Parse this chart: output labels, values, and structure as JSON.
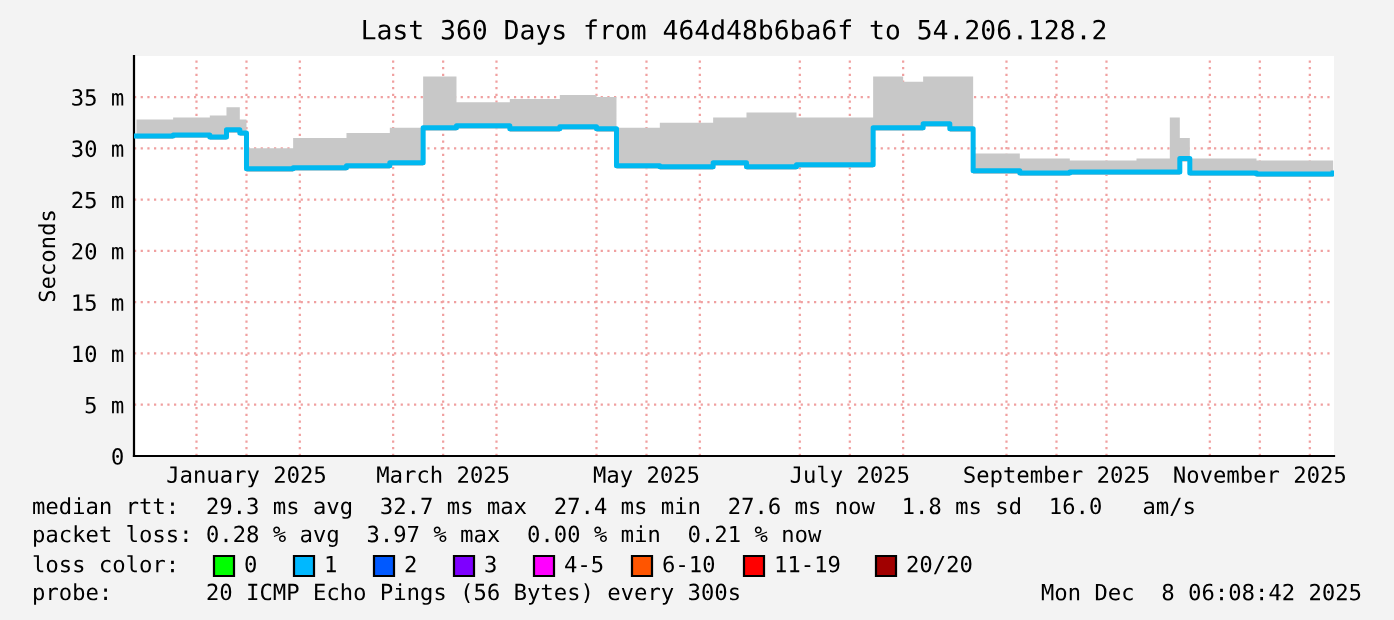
{
  "chart_data": {
    "type": "step",
    "title": "Last 360 Days from 464d48b6ba6f to 54.206.128.2",
    "ylabel": "Seconds",
    "x": [
      "2024-12-14",
      "2024-12-25",
      "2025-01-05",
      "2025-01-10",
      "2025-01-14",
      "2025-01-16",
      "2025-01-30",
      "2025-02-15",
      "2025-02-28",
      "2025-03-10",
      "2025-03-20",
      "2025-04-05",
      "2025-04-20",
      "2025-05-01",
      "2025-05-07",
      "2025-05-20",
      "2025-06-05",
      "2025-06-15",
      "2025-06-30",
      "2025-07-23",
      "2025-08-01",
      "2025-08-07",
      "2025-08-15",
      "2025-08-22",
      "2025-09-05",
      "2025-09-20",
      "2025-10-10",
      "2025-10-20",
      "2025-10-23",
      "2025-10-26",
      "2025-11-15",
      "2025-12-08"
    ],
    "series": [
      {
        "color": "#00b8f0",
        "values": [
          31.2,
          31.3,
          31.1,
          31.8,
          31.5,
          28.0,
          28.1,
          28.3,
          28.6,
          32.0,
          32.2,
          31.9,
          32.1,
          31.9,
          28.3,
          28.2,
          28.6,
          28.2,
          28.4,
          32.0,
          32.0,
          32.4,
          31.9,
          27.8,
          27.6,
          27.7,
          27.7,
          27.7,
          29.0,
          27.6,
          27.5,
          27.6
        ],
        "lower": [
          30.9,
          31.0,
          30.8,
          31.5,
          31.2,
          27.7,
          27.8,
          28.0,
          28.3,
          31.7,
          31.9,
          31.6,
          31.8,
          31.6,
          28.0,
          27.9,
          28.3,
          27.9,
          28.1,
          31.7,
          31.7,
          32.1,
          31.6,
          27.5,
          27.3,
          27.4,
          27.4,
          27.4,
          28.7,
          27.3,
          27.2,
          27.3
        ],
        "upper": [
          32.8,
          33.0,
          33.2,
          34.0,
          32.8,
          30.0,
          31.0,
          31.5,
          32.0,
          37.0,
          34.5,
          34.8,
          35.2,
          35.0,
          32.0,
          32.5,
          33.0,
          33.5,
          33.0,
          37.0,
          36.5,
          37.0,
          37.0,
          29.5,
          29.0,
          28.8,
          29.0,
          33.0,
          31.0,
          29.0,
          28.8,
          28.5
        ]
      }
    ],
    "xlim": [
      "2024-12-13T06:08",
      "2025-12-08T06:08"
    ],
    "xticks": [
      {
        "value": "2025-01-01",
        "label": null
      },
      {
        "value": "2025-01-16",
        "label": "January 2025"
      },
      {
        "value": "2025-02-01",
        "label": null
      },
      {
        "value": "2025-03-01",
        "label": null
      },
      {
        "value": "2025-03-16",
        "label": "March 2025"
      },
      {
        "value": "2025-04-01",
        "label": null
      },
      {
        "value": "2025-05-01",
        "label": null
      },
      {
        "value": "2025-05-16",
        "label": "May 2025"
      },
      {
        "value": "2025-06-01",
        "label": null
      },
      {
        "value": "2025-07-01",
        "label": null
      },
      {
        "value": "2025-07-16",
        "label": "July 2025"
      },
      {
        "value": "2025-08-01",
        "label": null
      },
      {
        "value": "2025-09-01",
        "label": null
      },
      {
        "value": "2025-09-16",
        "label": "September 2025"
      },
      {
        "value": "2025-10-01",
        "label": null
      },
      {
        "value": "2025-11-01",
        "label": null
      },
      {
        "value": "2025-11-16",
        "label": "November 2025"
      },
      {
        "value": "2025-12-01",
        "label": null
      }
    ],
    "ylim": [
      0,
      39
    ],
    "yticks": [
      0,
      {
        "value": 5,
        "label": "5 m"
      },
      {
        "value": 10,
        "label": "10 m"
      },
      {
        "value": 15,
        "label": "15 m"
      },
      {
        "value": 20,
        "label": "20 m"
      },
      {
        "value": 25,
        "label": "25 m"
      },
      {
        "value": 30,
        "label": "30 m"
      },
      {
        "value": 35,
        "label": "35 m"
      }
    ],
    "grid": true,
    "annotations": [
      "median rtt:  29.3 ms avg  32.7 ms max  27.4 ms min  27.6 ms now  1.8 ms sd  16.0   am/s",
      "packet loss: 0.28 % avg  3.97 % max  0.00 % min  0.21 % now",
      "loss color:",
      "0",
      "1",
      "2",
      "3",
      "4-5",
      "6-10",
      "11-19",
      "20/20",
      "probe:       20 ICMP Echo Pings (56 Bytes) every 300s",
      "Mon Dec  8 06:08:42 2025"
    ]
  }
}
